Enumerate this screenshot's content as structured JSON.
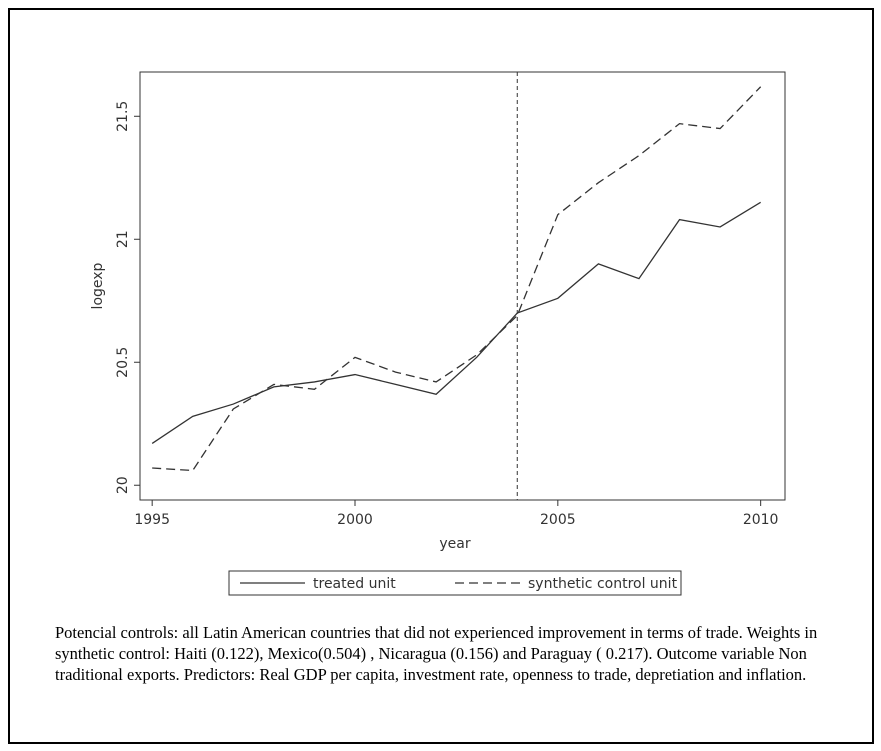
{
  "chart_data": {
    "type": "line",
    "x_label": "year",
    "y_label": "logexp",
    "x": [
      1995,
      1996,
      1997,
      1998,
      1999,
      2000,
      2001,
      2002,
      2003,
      2004,
      2005,
      2006,
      2007,
      2008,
      2009,
      2010
    ],
    "series": [
      {
        "name": "treated unit",
        "color": "#333333",
        "line_style": "solid",
        "values": [
          20.17,
          20.28,
          20.33,
          20.4,
          20.42,
          20.45,
          20.41,
          20.37,
          20.52,
          20.7,
          20.76,
          20.9,
          20.84,
          21.08,
          21.05,
          21.15
        ]
      },
      {
        "name": "synthetic control unit",
        "color": "#333333",
        "line_style": "dashed",
        "values": [
          20.07,
          20.06,
          20.31,
          20.41,
          20.39,
          20.52,
          20.46,
          20.42,
          20.53,
          20.69,
          21.1,
          21.23,
          21.34,
          21.47,
          21.45,
          21.62
        ]
      }
    ],
    "vline": 2004,
    "xlim": [
      1994.7,
      2010.6
    ],
    "xticks": [
      1995,
      2000,
      2005,
      2010
    ],
    "ylim": [
      19.94,
      21.68
    ],
    "yticks": [
      20,
      20.5,
      21,
      21.5
    ],
    "grid": false,
    "caption": "Potencial controls: all Latin American  countries that did not experienced improvement in terms of trade.  Weights in synthetic control:  Haiti (0.122), Mexico(0.504) , Nicaragua (0.156)  and Paraguay ( 0.217).  Outcome variable Non traditional exports.  Predictors: Real GDP per capita, investment rate, openness to trade, depretiation and  inflation."
  }
}
